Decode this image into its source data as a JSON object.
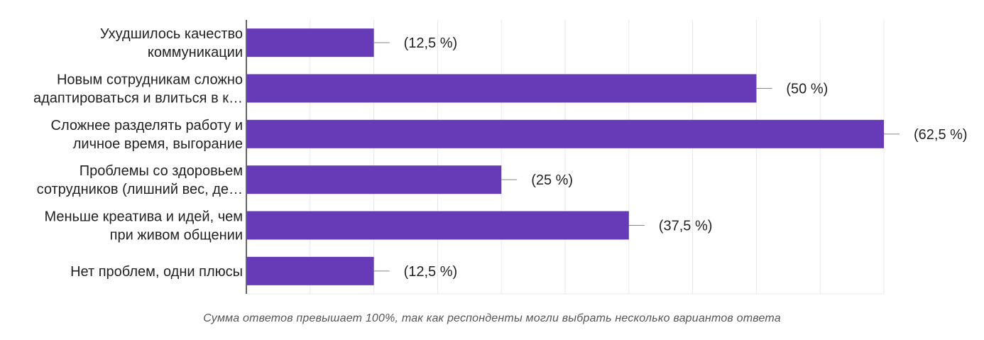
{
  "colors": {
    "bar": "#673ab7",
    "grid": "#e8e8e8",
    "axis": "#333333",
    "leader": "#888888",
    "text": "#222222",
    "footnote": "#555555"
  },
  "chart_data": {
    "type": "bar",
    "orientation": "horizontal",
    "categories": [
      [
        "Ухудшилось качество",
        "коммуникации"
      ],
      [
        "Новым сотрудникам сложно",
        "адаптироваться и влиться в к…"
      ],
      [
        "Сложнее разделять работу и",
        "личное время, выгорание"
      ],
      [
        "Проблемы со здоровьем",
        "сотрудников (лишний вес, де…"
      ],
      [
        "Меньше креатива и идей, чем",
        "при живом общении"
      ],
      [
        "Нет проблем, одни плюсы"
      ]
    ],
    "values": [
      12.5,
      50,
      62.5,
      25,
      37.5,
      12.5
    ],
    "value_labels": [
      "(12,5 %)",
      "(50 %)",
      "(62,5 %)",
      "(25 %)",
      "(37,5 %)",
      "(12,5 %)"
    ],
    "xlim": [
      0,
      62.5
    ],
    "grid": true,
    "legend": "none"
  },
  "footnote": "Сумма ответов превышает 100%, так как респонденты могли выбрать несколько вариантов ответа"
}
